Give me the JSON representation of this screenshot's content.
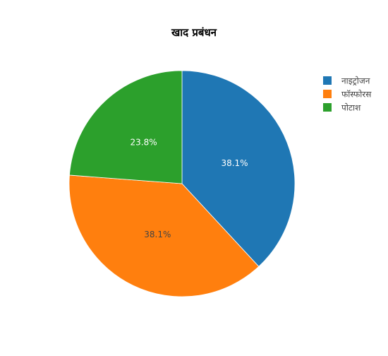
{
  "chart_data": {
    "type": "pie",
    "title": "खाद प्रबंधन",
    "labels": [
      "नाइट्रोजन",
      "फॉस्फोरस",
      "पोटाश"
    ],
    "values": [
      38.1,
      38.1,
      23.8
    ],
    "value_labels": [
      "38.1%",
      "38.1%",
      "23.8%"
    ],
    "colors": [
      "#1f77b4",
      "#ff7f0e",
      "#2ca02c"
    ],
    "label_colors": [
      "#ffffff",
      "#444444",
      "#ffffff"
    ],
    "direction": "clockwise",
    "start": "top",
    "legend_position": "top-right"
  }
}
